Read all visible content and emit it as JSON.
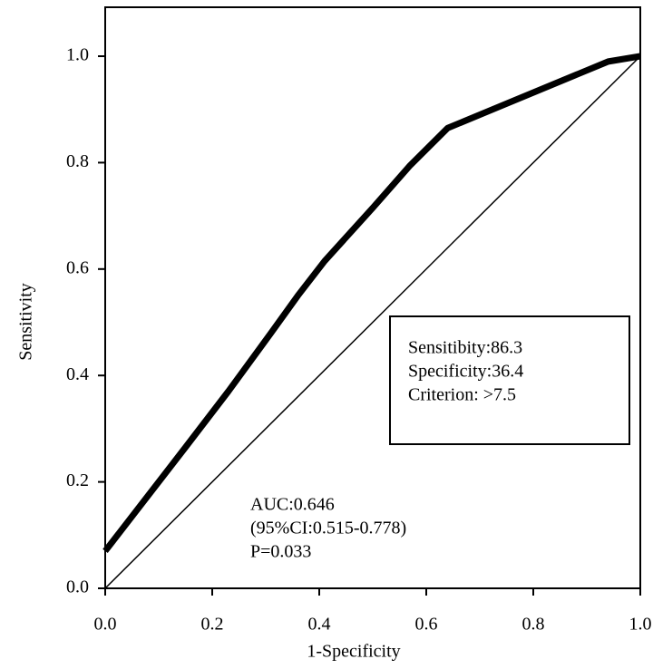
{
  "chart_data": {
    "type": "line",
    "x_label": "1-Specificity",
    "y_label": "Sensitivity",
    "x": [
      0,
      0.15,
      0.23,
      0.31,
      0.36,
      0.41,
      0.5,
      0.57,
      0.64,
      0.94,
      1
    ],
    "series": [
      {
        "color": "#000000",
        "values": [
          0.07,
          0.265,
          0.37,
          0.48,
          0.55,
          0.615,
          0.715,
          0.795,
          0.865,
          0.99,
          1
        ]
      }
    ],
    "diagonal": {
      "x": [
        0,
        1
      ],
      "values": [
        0,
        1
      ],
      "color": "#000000"
    },
    "xlim": [
      0,
      1
    ],
    "ylim": [
      0,
      1.092
    ],
    "xticks": [
      {
        "value": 0,
        "label": "0.0"
      },
      0.2,
      0.4,
      0.6,
      0.8,
      {
        "value": 1,
        "label": "1.0"
      }
    ],
    "yticks": [
      {
        "value": 0,
        "label": "0.0"
      },
      0.2,
      0.4,
      0.6,
      0.8,
      {
        "value": 1,
        "label": "1.0"
      }
    ],
    "grid": false,
    "box_annotation": [
      "Sensitibity:86.3",
      "Specificity:36.4",
      "Criterion: >7.5"
    ],
    "annotation": [
      "AUC:0.646",
      "(95%CI:0.515-0.778)",
      "P=0.033"
    ]
  }
}
